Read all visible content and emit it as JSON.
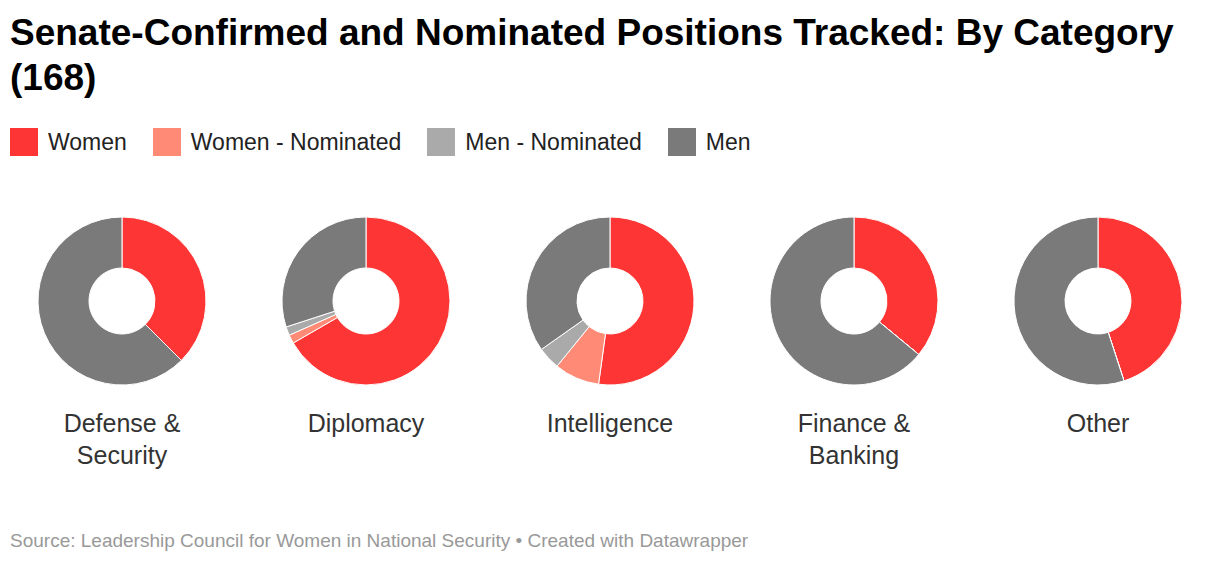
{
  "chart_data": {
    "type": "pie",
    "title": "Senate-Confirmed and Nominated Positions Tracked: By Category (168)",
    "source": "Source: Leadership Council for Women in National Security • Created with Datawrapper",
    "categories": [
      "Defense & Security",
      "Diplomacy",
      "Intelligence",
      "Finance & Banking",
      "Other"
    ],
    "series": [
      {
        "name": "Women",
        "color": "#fe3535",
        "values": [
          15,
          40,
          12,
          9,
          9
        ]
      },
      {
        "name": "Women - Nominated",
        "color": "#ff8b76",
        "values": [
          0,
          1,
          2,
          0,
          0
        ]
      },
      {
        "name": "Men - Nominated",
        "color": "#aaaaaa",
        "values": [
          0,
          1,
          1,
          0,
          0
        ]
      },
      {
        "name": "Men",
        "color": "#7a7a7a",
        "values": [
          25,
          18,
          8,
          16,
          11
        ]
      }
    ]
  }
}
